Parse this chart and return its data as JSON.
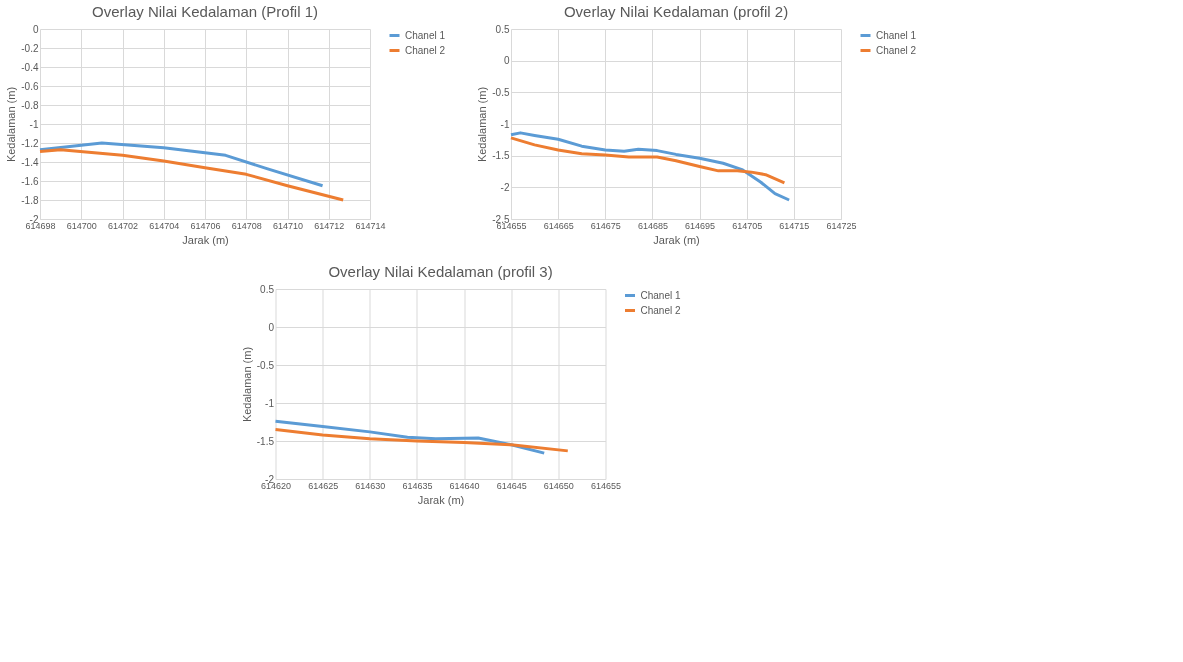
{
  "chart_data": [
    {
      "type": "line",
      "title": "Overlay Nilai Kedalaman  (Profil 1)",
      "xlabel": "Jarak (m)",
      "ylabel": "Kedalaman (m)",
      "xlim": [
        614698,
        614714
      ],
      "xticks": [
        614698,
        614700,
        614702,
        614704,
        614706,
        614708,
        614710,
        614712,
        614714
      ],
      "ylim": [
        -2,
        0
      ],
      "yticks": [
        0,
        -0.2,
        -0.4,
        -0.6,
        -0.8,
        -1,
        -1.2,
        -1.4,
        -1.6,
        -1.8,
        -2
      ],
      "grid": true,
      "legend": "right",
      "series": [
        {
          "name": "Chanel 1",
          "color": "#5b9bd5",
          "x": [
            614698,
            614701,
            614704,
            614707,
            614709,
            614711.7
          ],
          "values": [
            -1.27,
            -1.2,
            -1.25,
            -1.33,
            -1.47,
            -1.65
          ]
        },
        {
          "name": "Chanel 2",
          "color": "#ed7d31",
          "x": [
            614698,
            614699,
            614702,
            614704,
            614706,
            614708,
            614710,
            614712.7
          ],
          "values": [
            -1.29,
            -1.27,
            -1.33,
            -1.39,
            -1.46,
            -1.53,
            -1.65,
            -1.8
          ]
        }
      ]
    },
    {
      "type": "line",
      "title": "Overlay Nilai Kedalaman  (profil 2)",
      "xlabel": "Jarak (m)",
      "ylabel": "Kedalaman (m)",
      "xlim": [
        614655,
        614725
      ],
      "xticks": [
        614655,
        614665,
        614675,
        614685,
        614695,
        614705,
        614715,
        614725
      ],
      "ylim": [
        -2.5,
        0.5
      ],
      "yticks": [
        0.5,
        0,
        -0.5,
        -1,
        -1.5,
        -2,
        -2.5
      ],
      "grid": true,
      "legend": "right",
      "series": [
        {
          "name": "Chanel 1",
          "color": "#5b9bd5",
          "x": [
            614655,
            614657,
            614660,
            614665,
            614670,
            614675,
            614679,
            614682,
            614686,
            614690,
            614695,
            614700,
            614704,
            614708,
            614711,
            614714
          ],
          "values": [
            -1.17,
            -1.14,
            -1.18,
            -1.24,
            -1.35,
            -1.41,
            -1.43,
            -1.4,
            -1.42,
            -1.48,
            -1.54,
            -1.62,
            -1.72,
            -1.92,
            -2.1,
            -2.2
          ]
        },
        {
          "name": "Chanel 2",
          "color": "#ed7d31",
          "x": [
            614655,
            614660,
            614665,
            614670,
            614675,
            614680,
            614686,
            614690,
            614695,
            614699,
            614703,
            614706,
            614709,
            614713
          ],
          "values": [
            -1.22,
            -1.33,
            -1.41,
            -1.47,
            -1.49,
            -1.52,
            -1.52,
            -1.58,
            -1.67,
            -1.74,
            -1.74,
            -1.76,
            -1.8,
            -1.93
          ]
        }
      ]
    },
    {
      "type": "line",
      "title": "Overlay Nilai Kedalaman  (profil 3)",
      "xlabel": "Jarak (m)",
      "ylabel": "Kedalaman (m)",
      "xlim": [
        614620,
        614655
      ],
      "xticks": [
        614620,
        614625,
        614630,
        614635,
        614640,
        614645,
        614650,
        614655
      ],
      "ylim": [
        -2,
        0.5
      ],
      "yticks": [
        0.5,
        0,
        -0.5,
        -1,
        -1.5,
        -2
      ],
      "grid": true,
      "legend": "right",
      "series": [
        {
          "name": "Chanel 1",
          "color": "#5b9bd5",
          "x": [
            614620,
            614625,
            614630,
            614634,
            614637,
            614641.5,
            614645,
            614648.5
          ],
          "values": [
            -1.24,
            -1.31,
            -1.38,
            -1.45,
            -1.47,
            -1.46,
            -1.55,
            -1.66
          ]
        },
        {
          "name": "Chanel 2",
          "color": "#ed7d31",
          "x": [
            614620,
            614625,
            614630,
            614635,
            614640,
            614645,
            614651
          ],
          "values": [
            -1.35,
            -1.42,
            -1.47,
            -1.5,
            -1.52,
            -1.55,
            -1.63
          ]
        }
      ]
    }
  ]
}
